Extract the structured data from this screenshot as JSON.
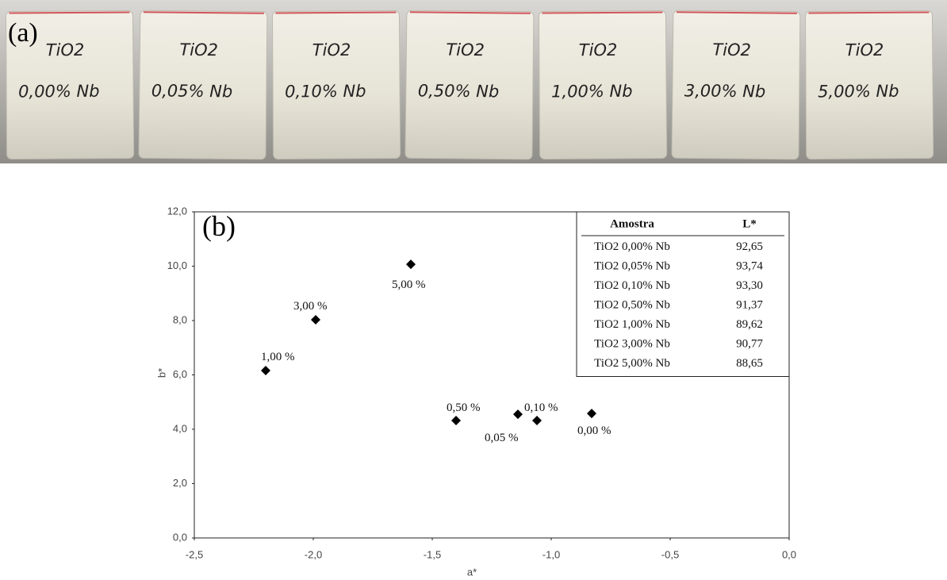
{
  "photo": {
    "label": "(a)",
    "bags": [
      {
        "line1": "TiO2",
        "line2": "0,00% Nb"
      },
      {
        "line1": "TiO2",
        "line2": "0,05% Nb"
      },
      {
        "line1": "TiO2",
        "line2": "0,10% Nb"
      },
      {
        "line1": "TiO2",
        "line2": "0,50% Nb"
      },
      {
        "line1": "TiO2",
        "line2": "1,00% Nb"
      },
      {
        "line1": "TiO2",
        "line2": "3,00% Nb"
      },
      {
        "line1": "TiO2",
        "line2": "5,00% Nb"
      }
    ]
  },
  "chart_data": {
    "type": "scatter",
    "panel_label": "(b)",
    "x_label": "a*",
    "y_label": "b*",
    "x": [
      -0.83,
      -1.14,
      -1.06,
      -1.4,
      -2.2,
      -1.99,
      -1.59
    ],
    "values": [
      4.58,
      4.55,
      4.32,
      4.32,
      6.16,
      8.03,
      10.07
    ],
    "point_labels": [
      "0,00 %",
      "0,05 %",
      "0,10 %",
      "0,50 %",
      "1,00 %",
      "3,00 %",
      "5,00 %"
    ],
    "color": "#000000",
    "xlim": [
      -2.5,
      0
    ],
    "ylim": [
      0,
      12
    ],
    "xticks": [
      {
        "value": -2.5,
        "label": "-2,5"
      },
      {
        "value": -2,
        "label": "-2,0"
      },
      {
        "value": -1.5,
        "label": "-1,5"
      },
      {
        "value": -1,
        "label": "-1,0"
      },
      {
        "value": -0.5,
        "label": "-0,5"
      },
      {
        "value": 0,
        "label": "0,0"
      }
    ],
    "yticks": [
      {
        "value": 0,
        "label": "0,0"
      },
      {
        "value": 2,
        "label": "2,0"
      },
      {
        "value": 4,
        "label": "4,0"
      },
      {
        "value": 6,
        "label": "6,0"
      },
      {
        "value": 8,
        "label": "8,0"
      },
      {
        "value": 10,
        "label": "10,0"
      },
      {
        "value": 12,
        "label": "12,0"
      }
    ],
    "grid": false,
    "table": {
      "columns": [
        "Amostra",
        "L*"
      ],
      "rows": [
        [
          "TiO2 0,00% Nb",
          "92,65"
        ],
        [
          "TiO2 0,05% Nb",
          "93,74"
        ],
        [
          "TiO2 0,10% Nb",
          "93,30"
        ],
        [
          "TiO2 0,50% Nb",
          "91,37"
        ],
        [
          "TiO2 1,00% Nb",
          "89,62"
        ],
        [
          "TiO2 3,00% Nb",
          "90,77"
        ],
        [
          "TiO2 5,00% Nb",
          "88,65"
        ]
      ]
    }
  }
}
